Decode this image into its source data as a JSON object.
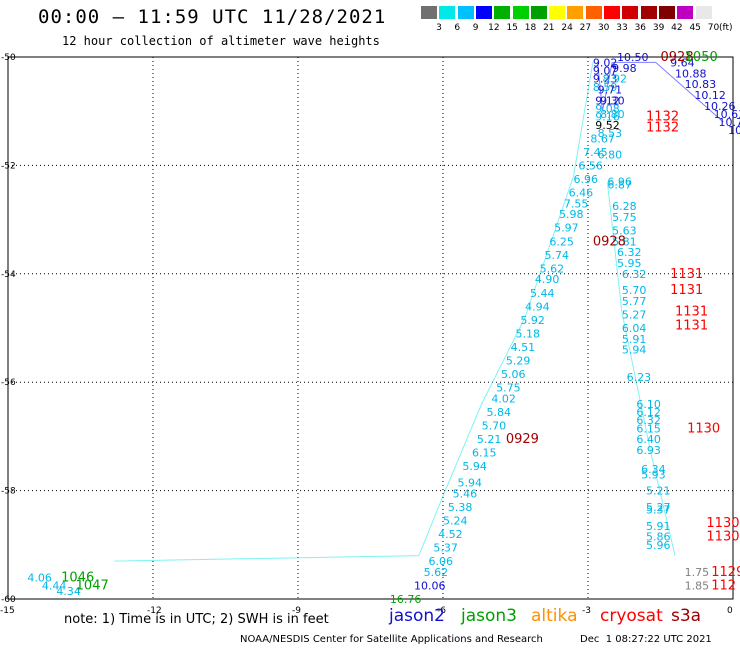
{
  "header": {
    "title": "00:00 — 11:59 UTC 11/28/2021",
    "subtitle": "12 hour collection of altimeter wave heights"
  },
  "color_scale": {
    "labels": [
      "3",
      "6",
      "9",
      "12",
      "15",
      "18",
      "21",
      "24",
      "27",
      "30",
      "33",
      "36",
      "39",
      "42",
      "45",
      "70"
    ],
    "colors": [
      "#707070",
      "#00e8e8",
      "#00c0ff",
      "#0000ff",
      "#00b000",
      "#00d000",
      "#00a000",
      "#ffff00",
      "#ffa000",
      "#ff6000",
      "#ff0000",
      "#d00000",
      "#a00000",
      "#800000",
      "#c000c0",
      "#e8e8e8"
    ],
    "unit": "(ft)"
  },
  "legend": {
    "note": "note: 1) Time is in UTC; 2) SWH is in feet",
    "satellites": [
      {
        "name": "jason2",
        "color": "#1010d0"
      },
      {
        "name": "jason3",
        "color": "#00a000"
      },
      {
        "name": "altika",
        "color": "#ff9000"
      },
      {
        "name": "cryosat",
        "color": "#ff0000"
      },
      {
        "name": "s3a",
        "color": "#a00000"
      }
    ]
  },
  "footer": {
    "source": "NOAA/NESDIS Center for Satellite Applications and Research",
    "timestamp": "Dec  1 08:27:22 UTC 2021"
  },
  "chart_data": {
    "type": "scatter",
    "title": "00:00 — 11:59 UTC 11/28/2021",
    "subtitle": "12 hour collection of altimeter wave heights",
    "xlim": [
      -15,
      0
    ],
    "ylim": [
      -60,
      -50
    ],
    "x_ticks": [
      "-15",
      "-12",
      "-9",
      "-6",
      "-3",
      "0"
    ],
    "y_ticks": [
      "-50",
      "-52",
      "-54",
      "-56",
      "-58",
      "-60"
    ],
    "grid": true,
    "track_lines": [
      {
        "color": "#00e8e8",
        "points": [
          [
            -12.8,
            -59.3
          ],
          [
            -6.5,
            -59.2
          ],
          [
            -6.0,
            -58.1
          ],
          [
            -5.2,
            -56.4
          ],
          [
            -4.3,
            -54.8
          ],
          [
            -3.3,
            -52.2
          ],
          [
            -2.9,
            -50.1
          ]
        ]
      },
      {
        "color": "#00e8e8",
        "points": [
          [
            -2.6,
            -52.3
          ],
          [
            -2.3,
            -54.7
          ],
          [
            -1.7,
            -57.3
          ],
          [
            -1.2,
            -59.2
          ]
        ]
      },
      {
        "color": "#0000ff",
        "points": [
          [
            -2.8,
            -50.1
          ],
          [
            -2.7,
            -51.0
          ],
          [
            -2.5,
            -50.1
          ],
          [
            -1.6,
            -50.1
          ],
          [
            -0.2,
            -51.2
          ]
        ]
      }
    ],
    "points": [
      {
        "x": -2.4,
        "y": -50.0,
        "label": "10.50",
        "color": "#1010d0"
      },
      {
        "x": -2.9,
        "y": -50.1,
        "label": "9.02",
        "color": "#1010d0"
      },
      {
        "x": -2.5,
        "y": -50.2,
        "label": "9.98",
        "color": "#1010d0"
      },
      {
        "x": -2.9,
        "y": -50.25,
        "label": "9.07",
        "color": "#1010d0"
      },
      {
        "x": -2.9,
        "y": -50.4,
        "label": "9.23",
        "color": "#1010d0"
      },
      {
        "x": -2.7,
        "y": -50.4,
        "label": "8.92",
        "color": "#00b8e8"
      },
      {
        "x": -2.9,
        "y": -50.55,
        "label": "8.59",
        "color": "#00b8e8"
      },
      {
        "x": -2.8,
        "y": -50.6,
        "label": "9.71",
        "color": "#1010d0"
      },
      {
        "x": -2.85,
        "y": -50.8,
        "label": "9.12",
        "color": "#1010d0"
      },
      {
        "x": -2.75,
        "y": -50.8,
        "label": "9.30",
        "color": "#1010d0"
      },
      {
        "x": -2.85,
        "y": -50.95,
        "label": "9.08",
        "color": "#00b8e8"
      },
      {
        "x": -2.85,
        "y": -51.1,
        "label": "9.16",
        "color": "#00b8e8"
      },
      {
        "x": -2.75,
        "y": -51.05,
        "label": "8.80",
        "color": "#00b8e8"
      },
      {
        "x": -2.85,
        "y": -51.25,
        "label": "9.52",
        "color": "#000000"
      },
      {
        "x": -2.8,
        "y": -51.4,
        "label": "8.53",
        "color": "#00b8e8"
      },
      {
        "x": -2.95,
        "y": -51.5,
        "label": "8.67",
        "color": "#00b8e8"
      },
      {
        "x": -3.1,
        "y": -51.75,
        "label": "7.45",
        "color": "#00b8e8"
      },
      {
        "x": -2.8,
        "y": -51.8,
        "label": "6.80",
        "color": "#00b8e8"
      },
      {
        "x": -3.2,
        "y": -52.0,
        "label": "6.56",
        "color": "#00b8e8"
      },
      {
        "x": -3.3,
        "y": -52.25,
        "label": "6.96",
        "color": "#00b8e8"
      },
      {
        "x": -2.6,
        "y": -52.3,
        "label": "6.96",
        "color": "#00b8e8"
      },
      {
        "x": -2.6,
        "y": -52.35,
        "label": "6.87",
        "color": "#00b8e8"
      },
      {
        "x": -3.4,
        "y": -52.5,
        "label": "6.46",
        "color": "#00b8e8"
      },
      {
        "x": -3.5,
        "y": -52.7,
        "label": "7.55",
        "color": "#00b8e8"
      },
      {
        "x": -2.5,
        "y": -52.75,
        "label": "6.28",
        "color": "#00b8e8"
      },
      {
        "x": -3.6,
        "y": -52.9,
        "label": "5.98",
        "color": "#00b8e8"
      },
      {
        "x": -2.5,
        "y": -52.95,
        "label": "5.75",
        "color": "#00b8e8"
      },
      {
        "x": -3.7,
        "y": -53.15,
        "label": "5.97",
        "color": "#00b8e8"
      },
      {
        "x": -2.5,
        "y": -53.2,
        "label": "5.63",
        "color": "#00b8e8"
      },
      {
        "x": -3.8,
        "y": -53.4,
        "label": "6.25",
        "color": "#00b8e8"
      },
      {
        "x": -2.5,
        "y": -53.4,
        "label": "5.81",
        "color": "#00b8e8"
      },
      {
        "x": -2.4,
        "y": -53.6,
        "label": "6.32",
        "color": "#00b8e8"
      },
      {
        "x": -3.9,
        "y": -53.65,
        "label": "5.74",
        "color": "#00b8e8"
      },
      {
        "x": -2.4,
        "y": -53.8,
        "label": "5.95",
        "color": "#00b8e8"
      },
      {
        "x": -4.0,
        "y": -53.9,
        "label": "5.62",
        "color": "#00b8e8"
      },
      {
        "x": -2.3,
        "y": -54.0,
        "label": "6.32",
        "color": "#00b8e8"
      },
      {
        "x": -4.1,
        "y": -54.1,
        "label": "4.90",
        "color": "#00b8e8"
      },
      {
        "x": -2.3,
        "y": -54.3,
        "label": "5.70",
        "color": "#00b8e8"
      },
      {
        "x": -4.2,
        "y": -54.35,
        "label": "5.44",
        "color": "#00b8e8"
      },
      {
        "x": -2.3,
        "y": -54.5,
        "label": "5.77",
        "color": "#00b8e8"
      },
      {
        "x": -4.3,
        "y": -54.6,
        "label": "4.94",
        "color": "#00b8e8"
      },
      {
        "x": -2.3,
        "y": -54.75,
        "label": "5.27",
        "color": "#00b8e8"
      },
      {
        "x": -4.4,
        "y": -54.85,
        "label": "5.92",
        "color": "#00b8e8"
      },
      {
        "x": -2.3,
        "y": -55.0,
        "label": "6.04",
        "color": "#00b8e8"
      },
      {
        "x": -4.5,
        "y": -55.1,
        "label": "5.18",
        "color": "#00b8e8"
      },
      {
        "x": -2.3,
        "y": -55.2,
        "label": "5.91",
        "color": "#00b8e8"
      },
      {
        "x": -2.3,
        "y": -55.4,
        "label": "5.94",
        "color": "#00b8e8"
      },
      {
        "x": -4.6,
        "y": -55.35,
        "label": "4.51",
        "color": "#00b8e8"
      },
      {
        "x": -4.7,
        "y": -55.6,
        "label": "5.29",
        "color": "#00b8e8"
      },
      {
        "x": -4.8,
        "y": -55.85,
        "label": "5.06",
        "color": "#00b8e8"
      },
      {
        "x": -2.2,
        "y": -55.9,
        "label": "6.23",
        "color": "#00b8e8"
      },
      {
        "x": -4.9,
        "y": -56.1,
        "label": "5.75",
        "color": "#00b8e8"
      },
      {
        "x": -5.0,
        "y": -56.3,
        "label": "4.02",
        "color": "#00b8e8"
      },
      {
        "x": -2.0,
        "y": -56.4,
        "label": "6.10",
        "color": "#00b8e8"
      },
      {
        "x": -5.1,
        "y": -56.55,
        "label": "5.84",
        "color": "#00b8e8"
      },
      {
        "x": -2.0,
        "y": -56.55,
        "label": "6.12",
        "color": "#00b8e8"
      },
      {
        "x": -2.0,
        "y": -56.7,
        "label": "6.32",
        "color": "#00b8e8"
      },
      {
        "x": -5.2,
        "y": -56.8,
        "label": "5.70",
        "color": "#00b8e8"
      },
      {
        "x": -2.0,
        "y": -56.85,
        "label": "6.15",
        "color": "#00b8e8"
      },
      {
        "x": -2.0,
        "y": -57.05,
        "label": "6.40",
        "color": "#00b8e8"
      },
      {
        "x": -5.3,
        "y": -57.05,
        "label": "5.21",
        "color": "#00b8e8"
      },
      {
        "x": -2.0,
        "y": -57.25,
        "label": "6.93",
        "color": "#00b8e8"
      },
      {
        "x": -5.4,
        "y": -57.3,
        "label": "6.15",
        "color": "#00b8e8"
      },
      {
        "x": -5.6,
        "y": -57.55,
        "label": "5.94",
        "color": "#00b8e8"
      },
      {
        "x": -1.9,
        "y": -57.6,
        "label": "6.34",
        "color": "#00b8e8"
      },
      {
        "x": -1.9,
        "y": -57.7,
        "label": "5.93",
        "color": "#00b8e8"
      },
      {
        "x": -5.7,
        "y": -57.85,
        "label": "5.94",
        "color": "#00b8e8"
      },
      {
        "x": -1.8,
        "y": -58.0,
        "label": "5.21",
        "color": "#00b8e8"
      },
      {
        "x": -5.8,
        "y": -58.05,
        "label": "5.46",
        "color": "#00b8e8"
      },
      {
        "x": -1.8,
        "y": -58.3,
        "label": "5.27",
        "color": "#00b8e8"
      },
      {
        "x": -1.8,
        "y": -58.35,
        "label": "5.37",
        "color": "#00b8e8"
      },
      {
        "x": -5.9,
        "y": -58.3,
        "label": "5.38",
        "color": "#00b8e8"
      },
      {
        "x": -6.0,
        "y": -58.55,
        "label": "5.24",
        "color": "#00b8e8"
      },
      {
        "x": -1.8,
        "y": -58.65,
        "label": "5.91",
        "color": "#00b8e8"
      },
      {
        "x": -6.1,
        "y": -58.8,
        "label": "4.52",
        "color": "#00b8e8"
      },
      {
        "x": -1.8,
        "y": -58.85,
        "label": "5.86",
        "color": "#00b8e8"
      },
      {
        "x": -1.8,
        "y": -59.0,
        "label": "5.96",
        "color": "#00b8e8"
      },
      {
        "x": -6.2,
        "y": -59.05,
        "label": "5.37",
        "color": "#00b8e8"
      },
      {
        "x": -6.3,
        "y": -59.3,
        "label": "6.06",
        "color": "#00b8e8"
      },
      {
        "x": -6.4,
        "y": -59.5,
        "label": "5.62",
        "color": "#00b8e8"
      },
      {
        "x": -6.6,
        "y": -59.75,
        "label": "10.06",
        "color": "#1010d0"
      },
      {
        "x": -7.1,
        "y": -60.0,
        "label": "16.76",
        "color": "#00a000"
      },
      {
        "x": -1.0,
        "y": -59.5,
        "label": "1.75",
        "color": "#808080"
      },
      {
        "x": -1.0,
        "y": -59.75,
        "label": "1.85",
        "color": "#808080"
      },
      {
        "x": -14.6,
        "y": -59.6,
        "label": "4.06",
        "color": "#00b8e8"
      },
      {
        "x": -14.3,
        "y": -59.75,
        "label": "4.44",
        "color": "#00b8e8"
      },
      {
        "x": -14.0,
        "y": -59.85,
        "label": "4.34",
        "color": "#00b8e8"
      },
      {
        "x": -1.3,
        "y": -50.1,
        "label": "9.64",
        "color": "#1010d0"
      },
      {
        "x": -1.2,
        "y": -50.3,
        "label": "10.88",
        "color": "#1010d0"
      },
      {
        "x": -1.0,
        "y": -50.5,
        "label": "10.83",
        "color": "#1010d0"
      },
      {
        "x": -0.8,
        "y": -50.7,
        "label": "10.12",
        "color": "#1010d0"
      },
      {
        "x": -0.6,
        "y": -50.9,
        "label": "10.26",
        "color": "#1010d0"
      },
      {
        "x": -0.4,
        "y": -51.05,
        "label": "10.63",
        "color": "#1010d0"
      },
      {
        "x": -0.3,
        "y": -51.2,
        "label": "10.7",
        "color": "#1010d0"
      },
      {
        "x": -0.1,
        "y": -51.35,
        "label": "10",
        "color": "#1010d0"
      }
    ],
    "time_labels": [
      {
        "x": -1.5,
        "y": -50.0,
        "label": "0928",
        "color": "#a00000"
      },
      {
        "x": -1.0,
        "y": -50.0,
        "label": "1050",
        "color": "#00a000"
      },
      {
        "x": -1.8,
        "y": -51.1,
        "label": "1132",
        "color": "#ff0000"
      },
      {
        "x": -1.8,
        "y": -51.3,
        "label": "1132",
        "color": "#ff0000"
      },
      {
        "x": -2.9,
        "y": -53.4,
        "label": "0928",
        "color": "#a00000"
      },
      {
        "x": -1.3,
        "y": -54.0,
        "label": "1131",
        "color": "#ff0000"
      },
      {
        "x": -1.3,
        "y": -54.3,
        "label": "1131",
        "color": "#ff0000"
      },
      {
        "x": -1.2,
        "y": -54.7,
        "label": "1131",
        "color": "#ff0000"
      },
      {
        "x": -1.2,
        "y": -54.95,
        "label": "1131",
        "color": "#ff0000"
      },
      {
        "x": -4.7,
        "y": -57.05,
        "label": "0929",
        "color": "#a00000"
      },
      {
        "x": -0.95,
        "y": -56.85,
        "label": "1130",
        "color": "#ff0000"
      },
      {
        "x": -0.55,
        "y": -58.6,
        "label": "1130",
        "color": "#ff0000"
      },
      {
        "x": -0.55,
        "y": -58.85,
        "label": "1130",
        "color": "#ff0000"
      },
      {
        "x": -0.45,
        "y": -59.5,
        "label": "1129",
        "color": "#ff0000"
      },
      {
        "x": -0.45,
        "y": -59.75,
        "label": "112",
        "color": "#ff0000"
      },
      {
        "x": -13.9,
        "y": -59.6,
        "label": "1046",
        "color": "#00a000"
      },
      {
        "x": -13.6,
        "y": -59.75,
        "label": "1047",
        "color": "#00a000"
      }
    ]
  }
}
